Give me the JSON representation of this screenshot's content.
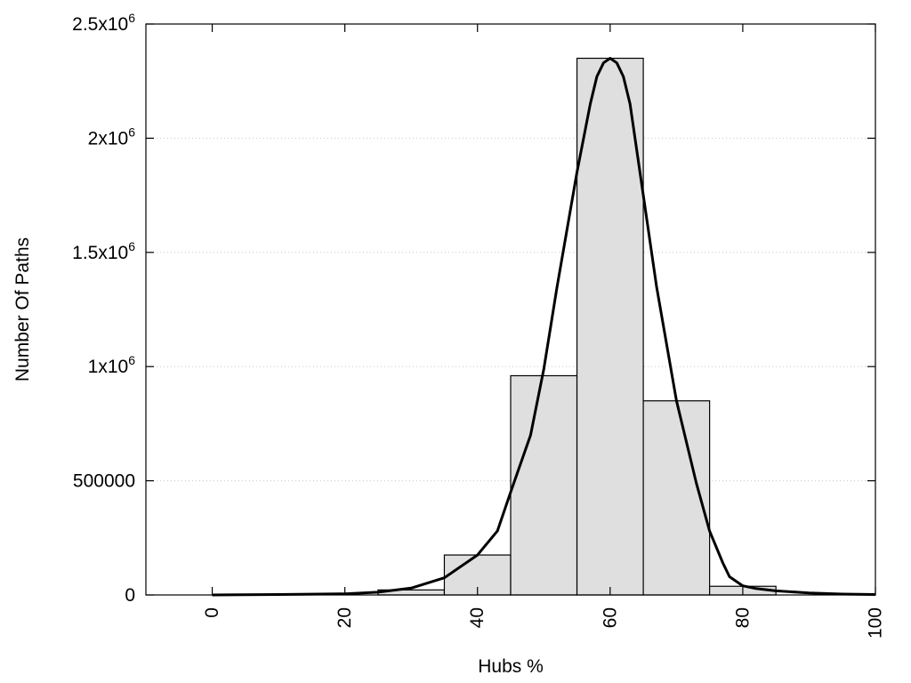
{
  "chart_data": {
    "type": "bar",
    "xlabel": "Hubs %",
    "ylabel": "Number Of Paths",
    "xlim": [
      -10,
      100
    ],
    "ylim": [
      0,
      2500000
    ],
    "x_ticks": [
      {
        "value": 0,
        "label": "0"
      },
      {
        "value": 20,
        "label": "20"
      },
      {
        "value": 40,
        "label": "40"
      },
      {
        "value": 60,
        "label": "60"
      },
      {
        "value": 80,
        "label": "80"
      },
      {
        "value": 100,
        "label": "100"
      }
    ],
    "y_ticks": [
      {
        "value": 0,
        "label": "0"
      },
      {
        "value": 500000,
        "label": "500000"
      },
      {
        "value": 1000000,
        "label": "1x10",
        "exp": "6"
      },
      {
        "value": 1500000,
        "label": "1.5x10",
        "exp": "6"
      },
      {
        "value": 2000000,
        "label": "2x10",
        "exp": "6"
      },
      {
        "value": 2500000,
        "label": "2.5x10",
        "exp": "6"
      }
    ],
    "bin_width": 10,
    "bars": [
      {
        "x": 30,
        "value": 22000
      },
      {
        "x": 40,
        "value": 175000
      },
      {
        "x": 50,
        "value": 960000
      },
      {
        "x": 60,
        "value": 2350000
      },
      {
        "x": 70,
        "value": 850000
      },
      {
        "x": 80,
        "value": 38000
      }
    ],
    "curve": {
      "x": [
        0,
        10,
        20,
        25,
        30,
        35,
        40,
        43,
        45,
        48,
        50,
        52,
        55,
        57,
        58,
        59,
        60,
        61,
        62,
        63,
        65,
        67,
        70,
        73,
        75,
        77,
        78,
        80,
        82,
        85,
        90,
        95,
        100
      ],
      "y": [
        0,
        2000,
        5000,
        12000,
        30000,
        75000,
        175000,
        280000,
        450000,
        700000,
        990000,
        1350000,
        1850000,
        2150000,
        2270000,
        2330000,
        2350000,
        2330000,
        2270000,
        2150000,
        1750000,
        1350000,
        850000,
        490000,
        280000,
        140000,
        80000,
        40000,
        28000,
        18000,
        9000,
        4000,
        2000
      ]
    },
    "colors": {
      "bar_fill": "#dfdfdf",
      "bar_stroke": "#000000",
      "curve": "#000000",
      "grid": "#c8c8c8"
    },
    "grid": true,
    "legend": "none"
  }
}
